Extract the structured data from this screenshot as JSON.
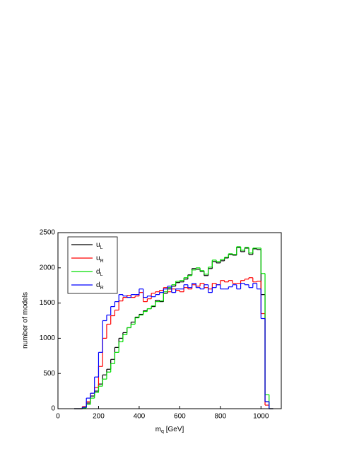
{
  "chart_data": {
    "type": "histogram",
    "xlabel": [
      "m",
      "q",
      " [GeV]"
    ],
    "ylabel": "number of models",
    "bins": [
      80,
      100,
      120,
      140,
      160,
      180,
      200,
      220,
      240,
      260,
      280,
      300,
      320,
      340,
      360,
      380,
      400,
      420,
      440,
      460,
      480,
      500,
      520,
      540,
      560,
      580,
      600,
      620,
      640,
      660,
      680,
      700,
      720,
      740,
      760,
      780,
      800,
      820,
      840,
      860,
      880,
      900,
      920,
      940,
      960,
      980,
      1000,
      1020,
      1040,
      1060
    ],
    "series": [
      {
        "name": "u",
        "subscript": "L",
        "color": "#000000",
        "values": [
          0,
          0,
          20,
          80,
          180,
          250,
          350,
          480,
          560,
          700,
          870,
          1000,
          1080,
          1150,
          1230,
          1300,
          1340,
          1390,
          1420,
          1450,
          1540,
          1520,
          1640,
          1700,
          1740,
          1790,
          1800,
          1840,
          1900,
          1990,
          1980,
          1950,
          1890,
          1990,
          2090,
          2070,
          2100,
          2140,
          2190,
          2180,
          2290,
          2230,
          2280,
          2190,
          2270,
          2260,
          1620,
          100,
          0
        ]
      },
      {
        "name": "u",
        "subscript": "R",
        "color": "#ff0000",
        "values": [
          0,
          0,
          30,
          100,
          220,
          300,
          600,
          1000,
          1200,
          1320,
          1400,
          1530,
          1580,
          1610,
          1580,
          1600,
          1650,
          1520,
          1560,
          1640,
          1660,
          1680,
          1720,
          1660,
          1700,
          1680,
          1660,
          1720,
          1700,
          1760,
          1740,
          1780,
          1720,
          1700,
          1780,
          1760,
          1820,
          1800,
          1820,
          1780,
          1780,
          1820,
          1840,
          1860,
          1800,
          1810,
          1350,
          50,
          0
        ]
      },
      {
        "name": "d",
        "subscript": "L",
        "color": "#00dd00",
        "values": [
          0,
          0,
          10,
          60,
          150,
          230,
          320,
          420,
          520,
          640,
          800,
          950,
          1050,
          1150,
          1200,
          1290,
          1330,
          1380,
          1420,
          1460,
          1520,
          1530,
          1660,
          1720,
          1760,
          1810,
          1820,
          1860,
          1890,
          1970,
          2000,
          1960,
          1910,
          2010,
          2110,
          2090,
          2120,
          2150,
          2200,
          2190,
          2300,
          2250,
          2290,
          2210,
          2280,
          2280,
          1920,
          200,
          0
        ]
      },
      {
        "name": "d",
        "subscript": "R",
        "color": "#0000ff",
        "values": [
          0,
          0,
          20,
          150,
          220,
          450,
          800,
          1250,
          1330,
          1450,
          1520,
          1620,
          1600,
          1580,
          1620,
          1620,
          1700,
          1580,
          1600,
          1590,
          1620,
          1650,
          1700,
          1740,
          1650,
          1700,
          1700,
          1760,
          1720,
          1780,
          1720,
          1700,
          1760,
          1650,
          1720,
          1760,
          1700,
          1700,
          1730,
          1760,
          1700,
          1780,
          1760,
          1720,
          1780,
          1700,
          1280,
          100,
          0
        ]
      }
    ],
    "xlim": [
      0,
      1100
    ],
    "xticks": [
      0,
      200,
      400,
      600,
      800,
      1000
    ],
    "ylim": [
      0,
      2500
    ],
    "yticks": [
      0,
      500,
      1000,
      1500,
      2000,
      2500
    ],
    "legend": "upper left"
  }
}
